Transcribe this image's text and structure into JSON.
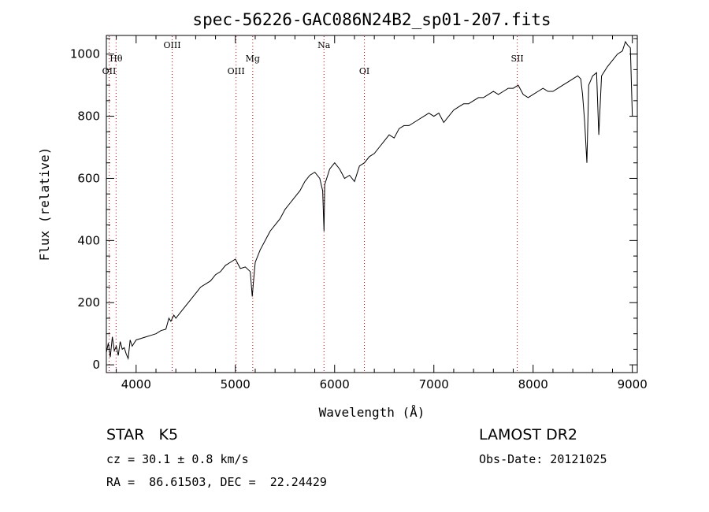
{
  "chart_data": {
    "type": "line",
    "title": "spec-56226-GAC086N24B2_sp01-207.fits",
    "xlabel": "Wavelength (Å)",
    "ylabel": "Flux (relative)",
    "xlim": [
      3700,
      9050
    ],
    "ylim": [
      -25,
      1060
    ],
    "xticks": [
      4000,
      5000,
      6000,
      7000,
      8000,
      9000
    ],
    "yticks": [
      0,
      200,
      400,
      600,
      800,
      1000
    ],
    "line_color": "#000000",
    "marker_color": "#cc0000",
    "grid": false,
    "series": [
      {
        "x": [
          3700,
          3720,
          3740,
          3760,
          3780,
          3800,
          3820,
          3840,
          3860,
          3880,
          3900,
          3920,
          3940,
          3960,
          3980,
          4000,
          4050,
          4100,
          4150,
          4200,
          4250,
          4300,
          4330,
          4350,
          4380,
          4400,
          4450,
          4500,
          4550,
          4600,
          4650,
          4700,
          4750,
          4800,
          4850,
          4900,
          4950,
          5000,
          5050,
          5100,
          5150,
          5170,
          5180,
          5200,
          5250,
          5300,
          5350,
          5400,
          5450,
          5500,
          5550,
          5600,
          5650,
          5700,
          5750,
          5800,
          5850,
          5880,
          5893,
          5900,
          5950,
          6000,
          6050,
          6100,
          6150,
          6200,
          6250,
          6300,
          6350,
          6400,
          6450,
          6500,
          6550,
          6600,
          6650,
          6700,
          6750,
          6800,
          6850,
          6900,
          6950,
          7000,
          7050,
          7100,
          7150,
          7200,
          7250,
          7300,
          7350,
          7400,
          7450,
          7500,
          7550,
          7600,
          7650,
          7700,
          7750,
          7800,
          7850,
          7900,
          7950,
          8000,
          8050,
          8100,
          8150,
          8200,
          8250,
          8300,
          8350,
          8400,
          8450,
          8480,
          8498,
          8520,
          8542,
          8560,
          8600,
          8640,
          8662,
          8690,
          8750,
          8800,
          8850,
          8900,
          8930,
          8950,
          8980,
          9000
        ],
        "y": [
          40,
          70,
          25,
          90,
          45,
          60,
          30,
          75,
          50,
          55,
          35,
          20,
          80,
          60,
          70,
          80,
          85,
          90,
          95,
          100,
          110,
          115,
          150,
          140,
          160,
          150,
          170,
          190,
          210,
          230,
          250,
          260,
          270,
          290,
          300,
          320,
          330,
          340,
          310,
          315,
          300,
          220,
          260,
          330,
          370,
          400,
          430,
          450,
          470,
          500,
          520,
          540,
          560,
          590,
          610,
          620,
          600,
          560,
          430,
          580,
          630,
          650,
          630,
          600,
          610,
          590,
          640,
          650,
          670,
          680,
          700,
          720,
          740,
          730,
          760,
          770,
          770,
          780,
          790,
          800,
          810,
          800,
          810,
          780,
          800,
          820,
          830,
          840,
          840,
          850,
          860,
          860,
          870,
          880,
          870,
          880,
          890,
          890,
          900,
          870,
          860,
          870,
          880,
          890,
          880,
          880,
          890,
          900,
          910,
          920,
          930,
          920,
          870,
          780,
          650,
          900,
          930,
          940,
          740,
          930,
          960,
          980,
          1000,
          1010,
          1040,
          1030,
          1020,
          800
        ]
      }
    ],
    "lines": [
      {
        "label": "Hθ",
        "x": 3798
      },
      {
        "label": "OII",
        "x": 3728
      },
      {
        "label": "OIII",
        "x": 4363
      },
      {
        "label": "OIII",
        "x": 5007
      },
      {
        "label": "Mg",
        "x": 5175
      },
      {
        "label": "Na",
        "x": 5893
      },
      {
        "label": "OI",
        "x": 6300
      },
      {
        "label": "SII",
        "x": 7840
      }
    ]
  },
  "info": {
    "class_line": "STAR   K5",
    "survey": "LAMOST DR2",
    "cz": "cz = 30.1 ± 0.8 km/s",
    "obs_date": "Obs-Date: 20121025",
    "coords": "RA =  86.61503, DEC =  22.24429"
  }
}
